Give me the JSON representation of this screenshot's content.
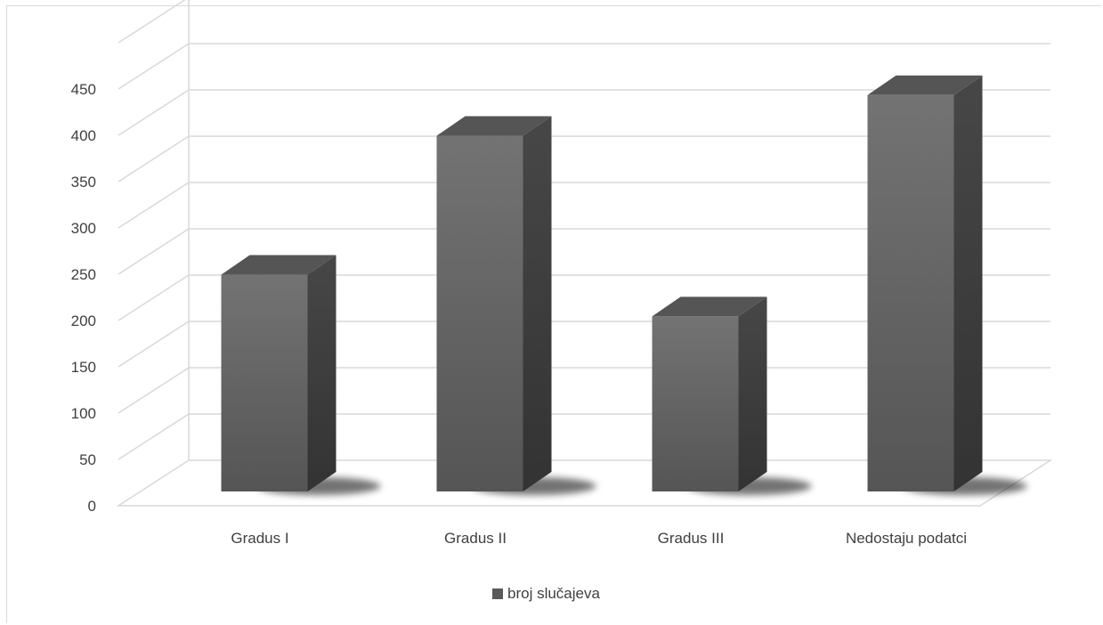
{
  "chart_data": {
    "type": "bar",
    "categories": [
      "Gradus I",
      "Gradus II",
      "Gradus III",
      "Nedostaju podatci"
    ],
    "series": [
      {
        "name": "broj slučajeva",
        "values": [
          236,
          386,
          191,
          430
        ]
      }
    ],
    "ylim": [
      0,
      450
    ],
    "yticks": [
      "0",
      "50",
      "100",
      "150",
      "200",
      "250",
      "300",
      "350",
      "400",
      "450"
    ],
    "grid": true,
    "legend_position": "bottom",
    "bar_style": "3d",
    "colors": {
      "bar_front": "#5f5f5f",
      "bar_side": "#3c3c3c",
      "bar_top": "#555555",
      "gridline": "#d9d9d9",
      "legend_swatch": "#595959"
    }
  }
}
